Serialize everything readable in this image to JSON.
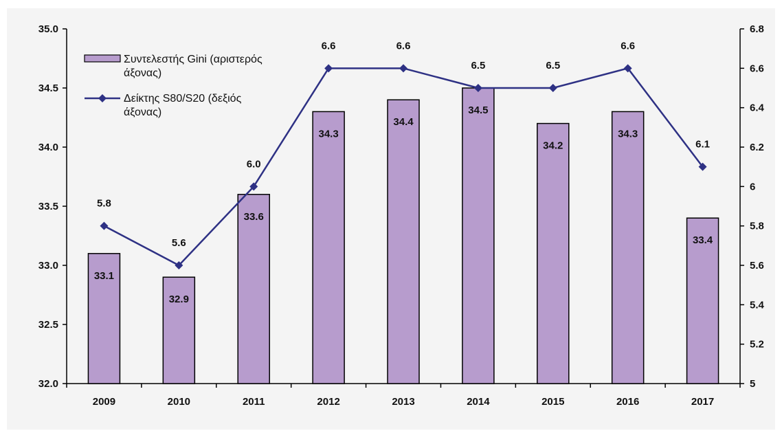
{
  "chart_data": {
    "type": "bar+line",
    "categories": [
      "2009",
      "2010",
      "2011",
      "2012",
      "2013",
      "2014",
      "2015",
      "2016",
      "2017"
    ],
    "series": [
      {
        "name": "Συντελεστής Gini (αριστερός άξονας)",
        "name_lines": [
          "Συντελεστής Gini (αριστερός",
          "άξονας)"
        ],
        "type": "bar",
        "axis": "left",
        "values": [
          33.1,
          32.9,
          33.6,
          34.3,
          34.4,
          34.5,
          34.2,
          34.3,
          33.4
        ],
        "labels": [
          "33.1",
          "32.9",
          "33.6",
          "34.3",
          "34.4",
          "34.5",
          "34.2",
          "34.3",
          "33.4"
        ],
        "color": "#b79ccd"
      },
      {
        "name": "Δείκτης S80/S20 (δεξιός άξονας)",
        "name_lines": [
          "Δείκτης S80/S20 (δεξιός",
          "άξονας)"
        ],
        "type": "line",
        "axis": "right",
        "values": [
          5.8,
          5.6,
          6.0,
          6.6,
          6.6,
          6.5,
          6.5,
          6.6,
          6.1
        ],
        "labels": [
          "5.8",
          "5.6",
          "6.0",
          "6.6",
          "6.6",
          "6.5",
          "6.5",
          "6.6",
          "6.1"
        ],
        "color": "#2e3184"
      }
    ],
    "y_left": {
      "min": 32.0,
      "max": 35.0,
      "ticks": [
        32.0,
        32.5,
        33.0,
        33.5,
        34.0,
        34.5,
        35.0
      ],
      "tick_labels": [
        "32.0",
        "32.5",
        "33.0",
        "33.5",
        "34.0",
        "34.5",
        "35.0"
      ]
    },
    "y_right": {
      "min": 5,
      "max": 6.8,
      "ticks": [
        5,
        5.2,
        5.4,
        5.6,
        5.8,
        6,
        6.2,
        6.4,
        6.6,
        6.8
      ],
      "tick_labels": [
        "5",
        "5.2",
        "5.4",
        "5.6",
        "5.8",
        "6",
        "6.2",
        "6.4",
        "6.6",
        "6.8"
      ]
    },
    "grid": false,
    "legend_position": "top-left",
    "title": "",
    "xlabel": "",
    "ylabel": ""
  }
}
